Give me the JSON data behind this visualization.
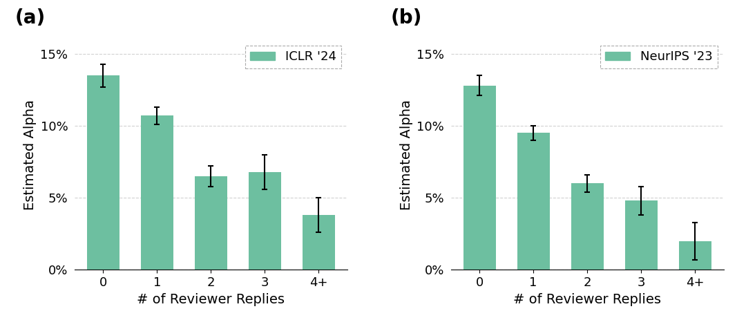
{
  "panel_a": {
    "label": "(a)",
    "legend": "ICLR '24",
    "categories": [
      "0",
      "1",
      "2",
      "3",
      "4+"
    ],
    "values": [
      0.135,
      0.107,
      0.065,
      0.068,
      0.038
    ],
    "yerr_low": [
      0.008,
      0.006,
      0.007,
      0.012,
      0.012
    ],
    "yerr_high": [
      0.008,
      0.006,
      0.007,
      0.012,
      0.012
    ]
  },
  "panel_b": {
    "label": "(b)",
    "legend": "NeurIPS '23",
    "categories": [
      "0",
      "1",
      "2",
      "3",
      "4+"
    ],
    "values": [
      0.128,
      0.095,
      0.06,
      0.048,
      0.02
    ],
    "yerr_low": [
      0.007,
      0.005,
      0.006,
      0.01,
      0.013
    ],
    "yerr_high": [
      0.007,
      0.005,
      0.006,
      0.01,
      0.013
    ]
  },
  "bar_color": "#6DBFA0",
  "ylabel": "Estimated Alpha",
  "xlabel": "# of Reviewer Replies",
  "ylim": [
    0,
    0.16
  ],
  "yticks": [
    0.0,
    0.05,
    0.1,
    0.15
  ],
  "ytick_labels": [
    "0%",
    "5%",
    "10%",
    "15%"
  ],
  "grid_color": "#cccccc",
  "grid_linestyle": "--",
  "grid_alpha": 0.9,
  "background_color": "#ffffff",
  "errorbar_color": "black",
  "errorbar_capsize": 3,
  "errorbar_linewidth": 1.5,
  "tick_fontsize": 13,
  "axis_label_fontsize": 14,
  "legend_fontsize": 13,
  "panel_label_fontsize": 20
}
